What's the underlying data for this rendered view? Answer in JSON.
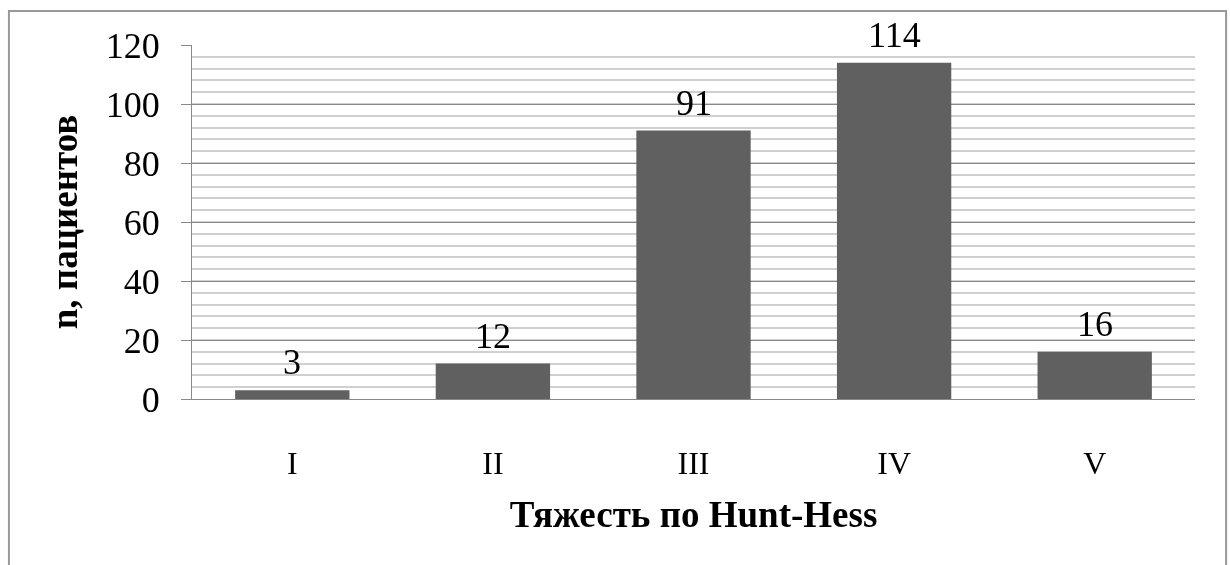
{
  "chart_data": {
    "type": "bar",
    "xlabel": "Тяжесть по Hunt-Hess",
    "ylabel": "n, пациентов",
    "categories": [
      "I",
      "II",
      "III",
      "IV",
      "V"
    ],
    "values": [
      3,
      12,
      91,
      114,
      16
    ],
    "color": "#606060",
    "ylim": [
      0,
      120
    ],
    "yticks": [
      0,
      20,
      40,
      60,
      80,
      100,
      120
    ],
    "grid": "y",
    "data_labels": true
  }
}
